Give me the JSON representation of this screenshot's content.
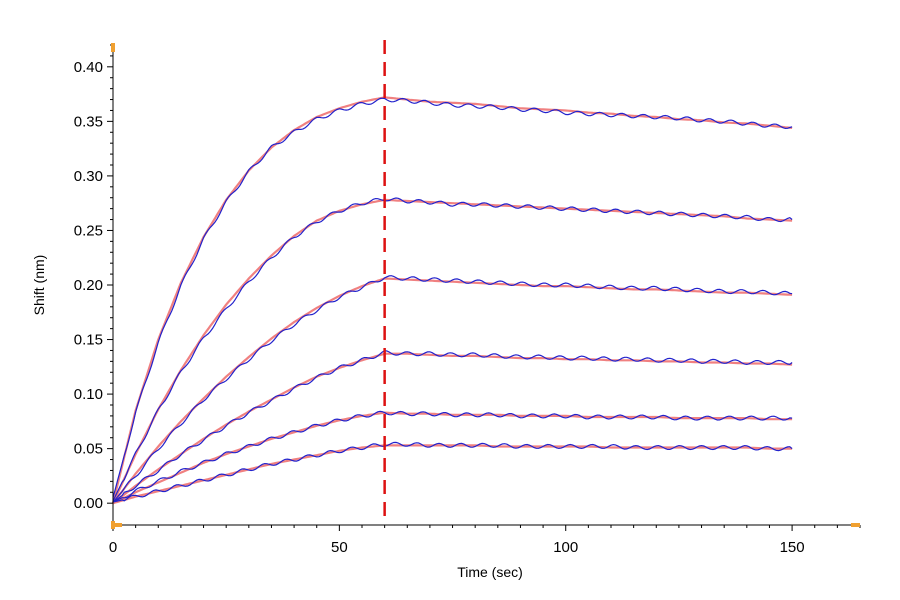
{
  "chart_data": {
    "type": "line",
    "title": "",
    "xlabel": "Time (sec)",
    "ylabel": "Shift (nm)",
    "xlim": [
      0,
      165
    ],
    "ylim": [
      -0.02,
      0.42
    ],
    "xticks": [
      0,
      50,
      100,
      150
    ],
    "xtick_labels": [
      "0",
      "50",
      "100",
      "150"
    ],
    "yticks": [
      0.0,
      0.05,
      0.1,
      0.15,
      0.2,
      0.25,
      0.3,
      0.35,
      0.4
    ],
    "ytick_labels": [
      "0.00",
      "0.05",
      "0.10",
      "0.15",
      "0.20",
      "0.25",
      "0.30",
      "0.35",
      "0.40"
    ],
    "x_minor_tick_step": 5,
    "y_minor_tick_step": 0.01,
    "grid": false,
    "legend": "none",
    "phase_boundary": {
      "x": 60,
      "style": "dashed",
      "color": "#dd1111"
    },
    "colors": {
      "measured": "#2222cc",
      "fitted": "#f08080",
      "axis_marker": "#f0a030"
    },
    "phases": {
      "association_end": 60,
      "dissociation_end": 150
    },
    "series": [
      {
        "x": [
          0,
          5,
          10,
          15,
          20,
          25,
          30,
          35,
          40,
          45,
          50,
          55,
          60,
          65,
          70,
          75,
          80,
          85,
          90,
          95,
          100,
          105,
          110,
          115,
          120,
          125,
          130,
          135,
          140,
          145,
          150
        ],
        "measured": [
          0.005,
          0.083,
          0.147,
          0.199,
          0.242,
          0.276,
          0.304,
          0.326,
          0.34,
          0.352,
          0.36,
          0.366,
          0.37,
          0.369,
          0.367,
          0.365,
          0.364,
          0.363,
          0.361,
          0.36,
          0.358,
          0.357,
          0.356,
          0.355,
          0.354,
          0.353,
          0.351,
          0.35,
          0.348,
          0.346,
          0.345
        ],
        "fitted": [
          0.0,
          0.085,
          0.15,
          0.202,
          0.244,
          0.278,
          0.305,
          0.326,
          0.342,
          0.354,
          0.362,
          0.368,
          0.372,
          0.37,
          0.368,
          0.367,
          0.366,
          0.364,
          0.362,
          0.361,
          0.36,
          0.358,
          0.357,
          0.355,
          0.354,
          0.352,
          0.351,
          0.349,
          0.348,
          0.346,
          0.344
        ]
      },
      {
        "x": [
          0,
          5,
          10,
          15,
          20,
          25,
          30,
          35,
          40,
          45,
          50,
          55,
          60,
          65,
          70,
          75,
          80,
          85,
          90,
          95,
          100,
          105,
          110,
          115,
          120,
          125,
          130,
          135,
          140,
          145,
          150
        ],
        "measured": [
          0.002,
          0.045,
          0.085,
          0.12,
          0.151,
          0.178,
          0.203,
          0.225,
          0.244,
          0.258,
          0.268,
          0.275,
          0.279,
          0.277,
          0.276,
          0.274,
          0.274,
          0.273,
          0.272,
          0.271,
          0.27,
          0.269,
          0.268,
          0.267,
          0.266,
          0.265,
          0.264,
          0.263,
          0.262,
          0.26,
          0.26
        ],
        "fitted": [
          0.0,
          0.045,
          0.086,
          0.122,
          0.154,
          0.182,
          0.206,
          0.227,
          0.245,
          0.259,
          0.268,
          0.274,
          0.278,
          0.277,
          0.276,
          0.275,
          0.274,
          0.273,
          0.272,
          0.271,
          0.27,
          0.269,
          0.268,
          0.267,
          0.266,
          0.265,
          0.264,
          0.263,
          0.261,
          0.26,
          0.259
        ]
      },
      {
        "x": [
          0,
          5,
          10,
          15,
          20,
          25,
          30,
          35,
          40,
          45,
          50,
          55,
          60,
          65,
          70,
          75,
          80,
          85,
          90,
          95,
          100,
          105,
          110,
          115,
          120,
          125,
          130,
          135,
          140,
          145,
          150
        ],
        "measured": [
          0.001,
          0.025,
          0.05,
          0.073,
          0.095,
          0.114,
          0.132,
          0.149,
          0.164,
          0.177,
          0.189,
          0.198,
          0.207,
          0.206,
          0.205,
          0.204,
          0.203,
          0.202,
          0.201,
          0.2,
          0.2,
          0.199,
          0.198,
          0.197,
          0.197,
          0.196,
          0.195,
          0.194,
          0.194,
          0.193,
          0.192
        ],
        "fitted": [
          0.0,
          0.027,
          0.052,
          0.075,
          0.096,
          0.116,
          0.134,
          0.151,
          0.166,
          0.179,
          0.19,
          0.199,
          0.206,
          0.205,
          0.204,
          0.203,
          0.202,
          0.201,
          0.2,
          0.199,
          0.199,
          0.198,
          0.197,
          0.196,
          0.196,
          0.195,
          0.194,
          0.193,
          0.193,
          0.192,
          0.191
        ]
      },
      {
        "x": [
          0,
          5,
          10,
          15,
          20,
          25,
          30,
          35,
          40,
          45,
          50,
          55,
          60,
          65,
          70,
          75,
          80,
          85,
          90,
          95,
          100,
          105,
          110,
          115,
          120,
          125,
          130,
          135,
          140,
          145,
          150
        ],
        "measured": [
          0.001,
          0.016,
          0.03,
          0.045,
          0.058,
          0.071,
          0.083,
          0.094,
          0.105,
          0.115,
          0.124,
          0.131,
          0.138,
          0.137,
          0.137,
          0.136,
          0.136,
          0.135,
          0.134,
          0.134,
          0.133,
          0.133,
          0.132,
          0.132,
          0.131,
          0.131,
          0.13,
          0.13,
          0.129,
          0.129,
          0.129
        ],
        "fitted": [
          0.0,
          0.016,
          0.031,
          0.045,
          0.059,
          0.072,
          0.084,
          0.095,
          0.106,
          0.116,
          0.124,
          0.131,
          0.137,
          0.137,
          0.136,
          0.135,
          0.135,
          0.134,
          0.133,
          0.133,
          0.132,
          0.132,
          0.131,
          0.131,
          0.13,
          0.13,
          0.129,
          0.129,
          0.128,
          0.128,
          0.127
        ]
      },
      {
        "x": [
          0,
          5,
          10,
          15,
          20,
          25,
          30,
          35,
          40,
          45,
          50,
          55,
          60,
          65,
          70,
          75,
          80,
          85,
          90,
          95,
          100,
          105,
          110,
          115,
          120,
          125,
          130,
          135,
          140,
          145,
          150
        ],
        "measured": [
          0.001,
          0.011,
          0.02,
          0.029,
          0.037,
          0.045,
          0.052,
          0.059,
          0.065,
          0.071,
          0.076,
          0.08,
          0.083,
          0.082,
          0.082,
          0.081,
          0.081,
          0.081,
          0.08,
          0.08,
          0.08,
          0.079,
          0.079,
          0.079,
          0.079,
          0.078,
          0.078,
          0.078,
          0.078,
          0.078,
          0.078
        ],
        "fitted": [
          0.0,
          0.01,
          0.019,
          0.028,
          0.037,
          0.045,
          0.052,
          0.059,
          0.065,
          0.071,
          0.076,
          0.08,
          0.083,
          0.082,
          0.082,
          0.081,
          0.081,
          0.081,
          0.08,
          0.08,
          0.08,
          0.079,
          0.079,
          0.079,
          0.079,
          0.078,
          0.078,
          0.078,
          0.078,
          0.077,
          0.077
        ]
      },
      {
        "x": [
          0,
          5,
          10,
          15,
          20,
          25,
          30,
          35,
          40,
          45,
          50,
          55,
          60,
          65,
          70,
          75,
          80,
          85,
          90,
          95,
          100,
          105,
          110,
          115,
          120,
          125,
          130,
          135,
          140,
          145,
          150
        ],
        "measured": [
          0.001,
          0.006,
          0.011,
          0.016,
          0.021,
          0.026,
          0.031,
          0.036,
          0.04,
          0.044,
          0.048,
          0.051,
          0.054,
          0.054,
          0.053,
          0.053,
          0.053,
          0.053,
          0.052,
          0.052,
          0.052,
          0.052,
          0.052,
          0.051,
          0.051,
          0.051,
          0.051,
          0.051,
          0.051,
          0.05,
          0.05
        ],
        "fitted": [
          0.0,
          0.006,
          0.011,
          0.016,
          0.021,
          0.026,
          0.031,
          0.036,
          0.04,
          0.044,
          0.048,
          0.051,
          0.053,
          0.053,
          0.053,
          0.053,
          0.053,
          0.052,
          0.052,
          0.052,
          0.052,
          0.052,
          0.051,
          0.051,
          0.051,
          0.051,
          0.051,
          0.051,
          0.051,
          0.05,
          0.05
        ]
      }
    ]
  }
}
